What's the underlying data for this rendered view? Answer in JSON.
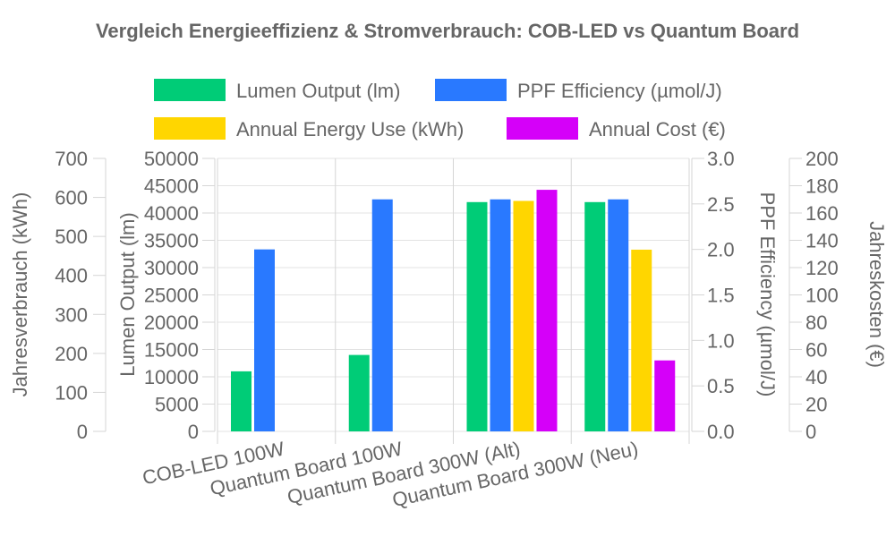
{
  "chart_data": {
    "type": "bar",
    "title": "Vergleich Energieeffizienz & Stromverbrauch: COB-LED vs Quantum Board",
    "categories": [
      "COB-LED 100W",
      "Quantum Board 100W",
      "Quantum Board 300W (Alt)",
      "Quantum Board 300W (Neu)"
    ],
    "series": [
      {
        "name": "Lumen Output (lm)",
        "color": "#00cc77",
        "axis": "lumen",
        "values": [
          11000,
          14000,
          42000,
          42000
        ]
      },
      {
        "name": "PPF Efficiency (µmol/J)",
        "color": "#2979ff",
        "axis": "ppf",
        "values": [
          2.0,
          2.55,
          2.55,
          2.55
        ]
      },
      {
        "name": "Annual Energy Use (kWh)",
        "color": "#ffd600",
        "axis": "energy",
        "values": [
          null,
          null,
          591,
          466
        ]
      },
      {
        "name": "Annual Cost (€)",
        "color": "#d500f9",
        "axis": "cost",
        "values": [
          null,
          null,
          177,
          52
        ]
      }
    ],
    "axes": {
      "energy": {
        "title": "Jahresverbrauch (kWh)",
        "min": 0,
        "max": 700,
        "step": 100,
        "position": "left-outer"
      },
      "lumen": {
        "title": "Lumen Output (lm)",
        "min": 0,
        "max": 50000,
        "step": 5000,
        "position": "left-inner"
      },
      "ppf": {
        "title": "PPF Efficiency (µmol/J)",
        "min": 0,
        "max": 3.0,
        "step": 0.5,
        "position": "right-inner"
      },
      "cost": {
        "title": "Jahreskosten (€)",
        "min": 0,
        "max": 200,
        "step": 20,
        "position": "right-outer"
      }
    },
    "grid": true,
    "legend": "top"
  }
}
